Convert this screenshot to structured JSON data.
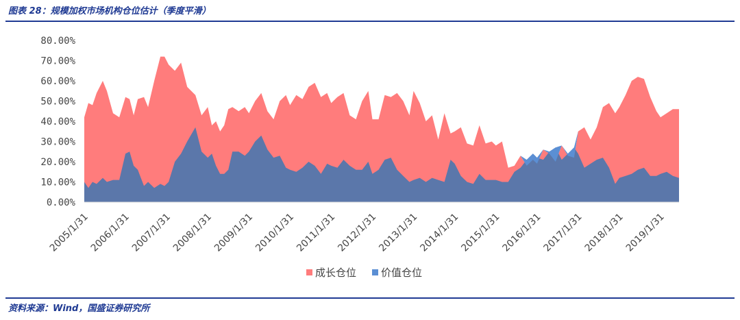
{
  "header": {
    "title": "图表 28：规模加权市场机构仓位估计（季度平滑）"
  },
  "footer": {
    "source": "资料来源：Wind，国盛证券研究所"
  },
  "chart_data": {
    "type": "area",
    "title": "图表 28：规模加权市场机构仓位估计（季度平滑）",
    "ylim": [
      0,
      80
    ],
    "yticks": [
      "0.00%",
      "10.00%",
      "20.00%",
      "30.00%",
      "40.00%",
      "50.00%",
      "60.00%",
      "70.00%",
      "80.00%"
    ],
    "xticks": [
      "2005/1/31",
      "2006/1/31",
      "2007/1/31",
      "2008/1/31",
      "2009/1/31",
      "2010/1/31",
      "2011/1/31",
      "2012/1/31",
      "2013/1/31",
      "2014/1/31",
      "2015/1/31",
      "2016/1/31",
      "2017/1/31",
      "2018/1/31",
      "2019/1/31"
    ],
    "legend_position": "bottom",
    "colors": {
      "growth": "#ff7c7c",
      "value": "#5b77aa",
      "value_ahead": "#5b8fd4"
    },
    "series": [
      {
        "name": "成长仓位",
        "x": [
          2005.0,
          2005.1,
          2005.2,
          2005.3,
          2005.45,
          2005.55,
          2005.7,
          2005.85,
          2006.0,
          2006.1,
          2006.2,
          2006.3,
          2006.45,
          2006.55,
          2006.7,
          2006.85,
          2006.95,
          2007.05,
          2007.2,
          2007.35,
          2007.5,
          2007.7,
          2007.85,
          2008.0,
          2008.1,
          2008.2,
          2008.3,
          2008.4,
          2008.5,
          2008.6,
          2008.75,
          2008.9,
          2009.0,
          2009.15,
          2009.3,
          2009.45,
          2009.6,
          2009.75,
          2009.9,
          2010.0,
          2010.15,
          2010.3,
          2010.45,
          2010.6,
          2010.75,
          2010.9,
          2011.0,
          2011.15,
          2011.3,
          2011.45,
          2011.6,
          2011.75,
          2011.9,
          2012.0,
          2012.15,
          2012.3,
          2012.45,
          2012.6,
          2012.75,
          2012.9,
          2013.0,
          2013.15,
          2013.3,
          2013.45,
          2013.6,
          2013.75,
          2013.9,
          2014.0,
          2014.15,
          2014.3,
          2014.45,
          2014.6,
          2014.75,
          2014.9,
          2015.0,
          2015.15,
          2015.3,
          2015.45,
          2015.6,
          2015.75,
          2015.9,
          2016.0,
          2016.15,
          2016.3,
          2016.45,
          2016.6,
          2016.75,
          2016.9,
          2017.0,
          2017.15,
          2017.3,
          2017.45,
          2017.6,
          2017.75,
          2017.9,
          2018.0,
          2018.15,
          2018.3,
          2018.45,
          2018.6,
          2018.75,
          2018.9,
          2019.0,
          2019.15,
          2019.3,
          2019.45
        ],
        "values": [
          42,
          49,
          48,
          54,
          60,
          55,
          44,
          42,
          52,
          51,
          43,
          51,
          52,
          47,
          60,
          72,
          72,
          68,
          65,
          69,
          57,
          53,
          43,
          47,
          38,
          40,
          35,
          38,
          46,
          47,
          45,
          47,
          44,
          50,
          54,
          45,
          41,
          50,
          53,
          48,
          53,
          51,
          57,
          59,
          52,
          54,
          49,
          52,
          54,
          43,
          41,
          50,
          55,
          41,
          41,
          53,
          52,
          54,
          50,
          43,
          55,
          49,
          40,
          43,
          31,
          44,
          34,
          35,
          37,
          29,
          28,
          38,
          29,
          30,
          28,
          30,
          17,
          18,
          23,
          18,
          21,
          19,
          26,
          24,
          20,
          28,
          23,
          22,
          35,
          37,
          31,
          37,
          47,
          49,
          44,
          47,
          53,
          60,
          62,
          61,
          52,
          45,
          42,
          44,
          46,
          46
        ]
      },
      {
        "name": "价值仓位",
        "x": [
          2005.0,
          2005.1,
          2005.2,
          2005.3,
          2005.45,
          2005.55,
          2005.7,
          2005.85,
          2006.0,
          2006.1,
          2006.2,
          2006.3,
          2006.45,
          2006.55,
          2006.7,
          2006.85,
          2006.95,
          2007.05,
          2007.2,
          2007.35,
          2007.5,
          2007.7,
          2007.85,
          2008.0,
          2008.1,
          2008.2,
          2008.3,
          2008.4,
          2008.5,
          2008.6,
          2008.75,
          2008.9,
          2009.0,
          2009.15,
          2009.3,
          2009.45,
          2009.6,
          2009.75,
          2009.9,
          2010.0,
          2010.15,
          2010.3,
          2010.45,
          2010.6,
          2010.75,
          2010.9,
          2011.0,
          2011.15,
          2011.3,
          2011.45,
          2011.6,
          2011.75,
          2011.9,
          2012.0,
          2012.15,
          2012.3,
          2012.45,
          2012.6,
          2012.75,
          2012.9,
          2013.0,
          2013.15,
          2013.3,
          2013.45,
          2013.6,
          2013.75,
          2013.9,
          2014.0,
          2014.15,
          2014.3,
          2014.45,
          2014.6,
          2014.75,
          2014.9,
          2015.0,
          2015.15,
          2015.3,
          2015.45,
          2015.6,
          2015.75,
          2015.9,
          2016.0,
          2016.15,
          2016.3,
          2016.45,
          2016.6,
          2016.75,
          2016.9,
          2017.0,
          2017.15,
          2017.3,
          2017.45,
          2017.6,
          2017.75,
          2017.9,
          2018.0,
          2018.15,
          2018.3,
          2018.45,
          2018.6,
          2018.75,
          2018.9,
          2019.0,
          2019.15,
          2019.3,
          2019.45
        ],
        "values": [
          10,
          7,
          10,
          9,
          12,
          10,
          11,
          11,
          24,
          25,
          18,
          16,
          8,
          10,
          7,
          9,
          8,
          10,
          20,
          24,
          30,
          37,
          25,
          22,
          24,
          18,
          14,
          14,
          16,
          25,
          25,
          23,
          25,
          30,
          33,
          26,
          22,
          23,
          17,
          16,
          15,
          17,
          20,
          18,
          14,
          19,
          18,
          17,
          21,
          18,
          16,
          16,
          20,
          14,
          16,
          21,
          22,
          16,
          13,
          10,
          11,
          12,
          10,
          12,
          11,
          10,
          21,
          19,
          13,
          10,
          9,
          14,
          11,
          11,
          11,
          10,
          10,
          15,
          17,
          21,
          24,
          22,
          21,
          25,
          27,
          21,
          24,
          27,
          24,
          17,
          19,
          21,
          22,
          17,
          9,
          12,
          13,
          14,
          16,
          17,
          13,
          13,
          14,
          15,
          13,
          12
        ]
      }
    ]
  }
}
